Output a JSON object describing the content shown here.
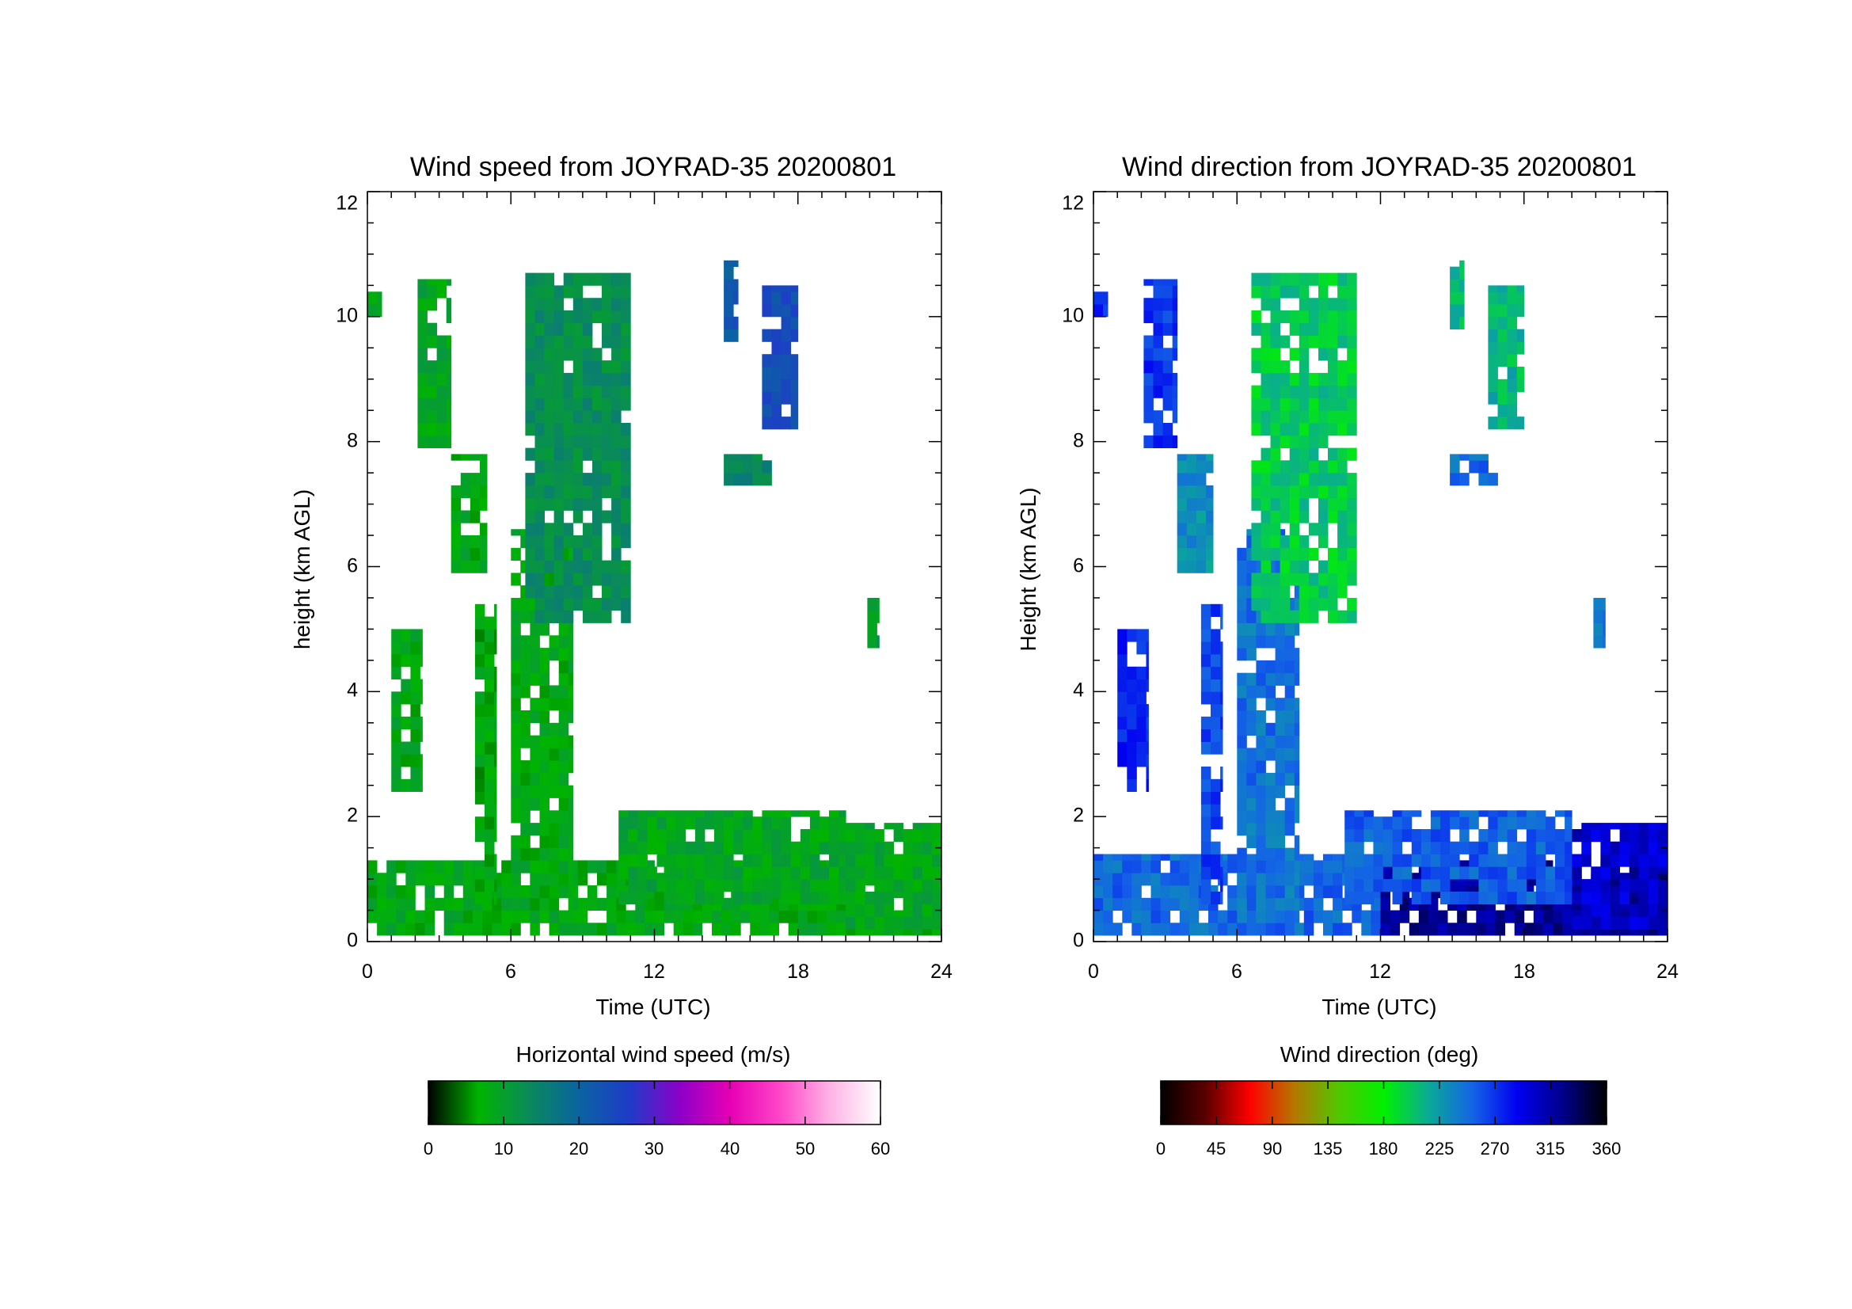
{
  "chart_data": [
    {
      "type": "heatmap",
      "title": "Wind speed from JOYRAD-35 20200801",
      "xlabel": "Time (UTC)",
      "ylabel": "height (km AGL)",
      "xlim": [
        0,
        24
      ],
      "ylim": [
        0,
        12
      ],
      "xticks": [
        "0",
        "6",
        "12",
        "18",
        "24"
      ],
      "yticks": [
        "0",
        "2",
        "4",
        "6",
        "8",
        "10",
        "12"
      ],
      "colorbar": {
        "label": "Horizontal wind speed (m/s)",
        "range": [
          0,
          60
        ],
        "ticks": [
          "0",
          "10",
          "20",
          "30",
          "40",
          "50",
          "60"
        ],
        "colors": [
          "#000000",
          "#00b400",
          "#0a8a5a",
          "#0a64a0",
          "#1e3cc8",
          "#8c00c8",
          "#e600b4",
          "#ff46c8",
          "#ffb4e6",
          "#ffffff"
        ]
      },
      "data_regions": [
        {
          "t0": 0.0,
          "t1": 24.0,
          "h0": 0.1,
          "h1": 1.3,
          "value": 8
        },
        {
          "t0": 0.0,
          "t1": 0.6,
          "h0": 10.0,
          "h1": 10.4,
          "value": 9
        },
        {
          "t0": 1.0,
          "t1": 2.3,
          "h0": 2.4,
          "h1": 5.0,
          "value": 8
        },
        {
          "t0": 2.1,
          "t1": 3.5,
          "h0": 7.9,
          "h1": 10.6,
          "value": 9
        },
        {
          "t0": 3.5,
          "t1": 5.0,
          "h0": 5.9,
          "h1": 7.8,
          "value": 8
        },
        {
          "t0": 4.5,
          "t1": 5.4,
          "h0": 0.6,
          "h1": 5.4,
          "value": 7
        },
        {
          "t0": 6.0,
          "t1": 8.6,
          "h0": 0.3,
          "h1": 6.6,
          "value": 8
        },
        {
          "t0": 6.6,
          "t1": 11.0,
          "h0": 5.1,
          "h1": 10.7,
          "value": 13
        },
        {
          "t0": 10.5,
          "t1": 20.0,
          "h0": 0.6,
          "h1": 2.1,
          "value": 9
        },
        {
          "t0": 14.9,
          "t1": 15.5,
          "h0": 9.6,
          "h1": 10.9,
          "value": 22
        },
        {
          "t0": 16.5,
          "t1": 18.0,
          "h0": 8.2,
          "h1": 10.5,
          "value": 24
        },
        {
          "t0": 14.9,
          "t1": 16.9,
          "h0": 7.3,
          "h1": 7.8,
          "value": 14
        },
        {
          "t0": 20.9,
          "t1": 21.4,
          "h0": 4.7,
          "h1": 5.5,
          "value": 11
        },
        {
          "t0": 20.0,
          "t1": 24.0,
          "h0": 0.2,
          "h1": 1.9,
          "value": 9
        }
      ]
    },
    {
      "type": "heatmap",
      "title": "Wind direction from JOYRAD-35 20200801",
      "xlabel": "Time (UTC)",
      "ylabel": "Height (km AGL)",
      "xlim": [
        0,
        24
      ],
      "ylim": [
        0,
        12
      ],
      "xticks": [
        "0",
        "6",
        "12",
        "18",
        "24"
      ],
      "yticks": [
        "0",
        "2",
        "4",
        "6",
        "8",
        "10",
        "12"
      ],
      "colorbar": {
        "label": "Wind direction (deg)",
        "range": [
          0,
          360
        ],
        "ticks": [
          "0",
          "45",
          "90",
          "135",
          "180",
          "225",
          "270",
          "315",
          "360"
        ],
        "colors": [
          "#000000",
          "#5a0000",
          "#ff0000",
          "#b47800",
          "#50c800",
          "#00f000",
          "#0aaa96",
          "#1464e6",
          "#0000f0",
          "#00008c",
          "#000000"
        ]
      },
      "data_regions": [
        {
          "t0": 0.0,
          "t1": 12.0,
          "h0": 0.1,
          "h1": 1.4,
          "value": 250
        },
        {
          "t0": 12.0,
          "t1": 24.0,
          "h0": 0.1,
          "h1": 1.3,
          "value": 320
        },
        {
          "t0": 0.0,
          "t1": 0.6,
          "h0": 10.0,
          "h1": 10.4,
          "value": 270
        },
        {
          "t0": 1.0,
          "t1": 2.3,
          "h0": 2.4,
          "h1": 5.0,
          "value": 275
        },
        {
          "t0": 2.1,
          "t1": 3.5,
          "h0": 7.9,
          "h1": 10.6,
          "value": 270
        },
        {
          "t0": 3.5,
          "t1": 5.0,
          "h0": 5.9,
          "h1": 7.8,
          "value": 230
        },
        {
          "t0": 4.5,
          "t1": 5.4,
          "h0": 0.6,
          "h1": 5.4,
          "value": 265
        },
        {
          "t0": 6.0,
          "t1": 8.6,
          "h0": 0.3,
          "h1": 6.6,
          "value": 245
        },
        {
          "t0": 6.6,
          "t1": 11.0,
          "h0": 5.1,
          "h1": 10.7,
          "value": 200
        },
        {
          "t0": 10.5,
          "t1": 20.0,
          "h0": 0.6,
          "h1": 2.1,
          "value": 255
        },
        {
          "t0": 14.9,
          "t1": 15.5,
          "h0": 9.6,
          "h1": 10.9,
          "value": 205
        },
        {
          "t0": 16.5,
          "t1": 18.0,
          "h0": 8.2,
          "h1": 10.5,
          "value": 210
        },
        {
          "t0": 14.9,
          "t1": 16.9,
          "h0": 7.3,
          "h1": 7.8,
          "value": 250
        },
        {
          "t0": 20.9,
          "t1": 21.4,
          "h0": 4.7,
          "h1": 5.5,
          "value": 240
        },
        {
          "t0": 20.0,
          "t1": 24.0,
          "h0": 0.2,
          "h1": 1.9,
          "value": 300
        }
      ]
    }
  ]
}
